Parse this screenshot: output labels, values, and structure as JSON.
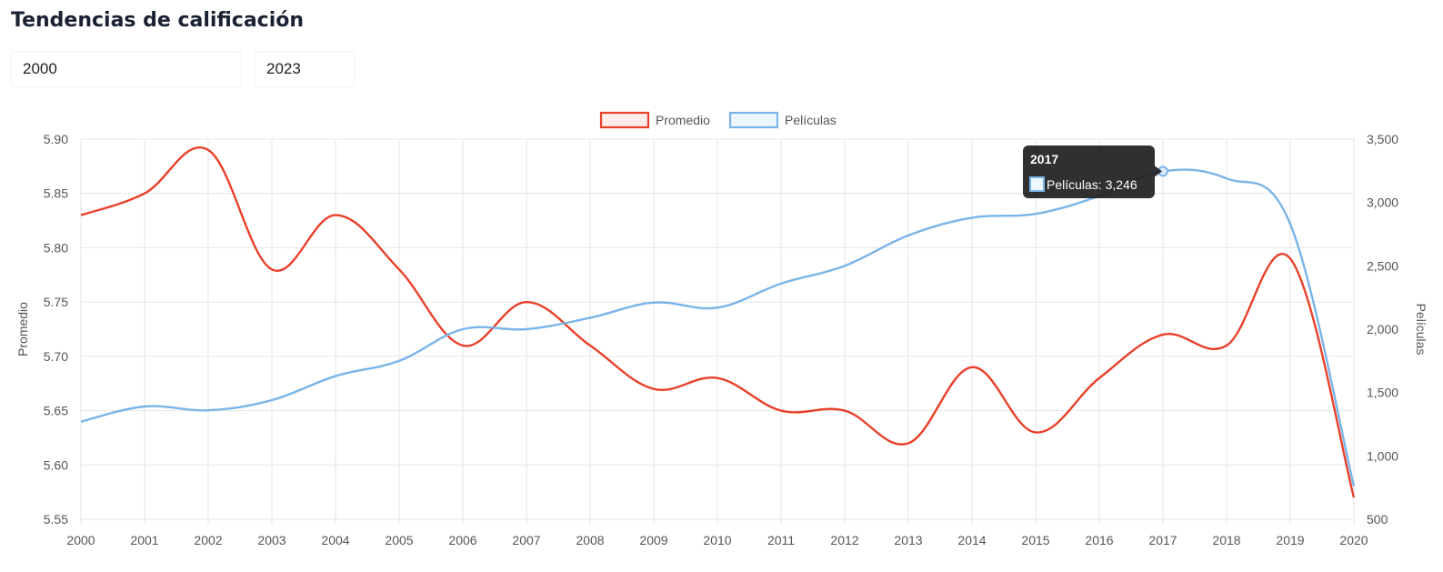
{
  "header": {
    "title": "Tendencias de calificación"
  },
  "filters": {
    "from_year": "2000",
    "to_year": "2023"
  },
  "tooltip": {
    "title": "2017",
    "label": "Películas: 3,246",
    "series_index": 1,
    "category_index": 17
  },
  "colors": {
    "promedio": "#e8402a",
    "peliculas": "#7ab4e8",
    "grid": "#e6e6e6",
    "tooltip_bg": "#1e1e1e"
  },
  "chart_data": {
    "type": "line",
    "categories": [
      "2000",
      "2001",
      "2002",
      "2003",
      "2004",
      "2005",
      "2006",
      "2007",
      "2008",
      "2009",
      "2010",
      "2011",
      "2012",
      "2013",
      "2014",
      "2015",
      "2016",
      "2017",
      "2018",
      "2019",
      "2020"
    ],
    "series": [
      {
        "name": "Promedio",
        "axis": "left",
        "values": [
          5.83,
          5.85,
          5.89,
          5.78,
          5.83,
          5.78,
          5.71,
          5.75,
          5.71,
          5.67,
          5.68,
          5.65,
          5.65,
          5.62,
          5.69,
          5.63,
          5.68,
          5.72,
          5.71,
          5.79,
          5.57
        ]
      },
      {
        "name": "Películas",
        "axis": "right",
        "values": [
          1270,
          1390,
          1360,
          1440,
          1630,
          1750,
          2000,
          2000,
          2090,
          2210,
          2170,
          2360,
          2500,
          2740,
          2880,
          2910,
          3050,
          3246,
          3190,
          2830,
          760
        ]
      }
    ],
    "y_left": {
      "label": "Promedio",
      "min": 5.55,
      "max": 5.9,
      "step": 0.05,
      "tick_labels": [
        "5.55",
        "5.60",
        "5.65",
        "5.70",
        "5.75",
        "5.80",
        "5.85",
        "5.90"
      ]
    },
    "y_right": {
      "label": "Películas",
      "min": 500,
      "max": 3500,
      "step": 500,
      "tick_labels": [
        "500",
        "1,000",
        "1,500",
        "2,000",
        "2,500",
        "3,000",
        "3,500"
      ]
    },
    "legend": {
      "position": "top",
      "entries": [
        "Promedio",
        "Películas"
      ]
    },
    "grid": true
  }
}
